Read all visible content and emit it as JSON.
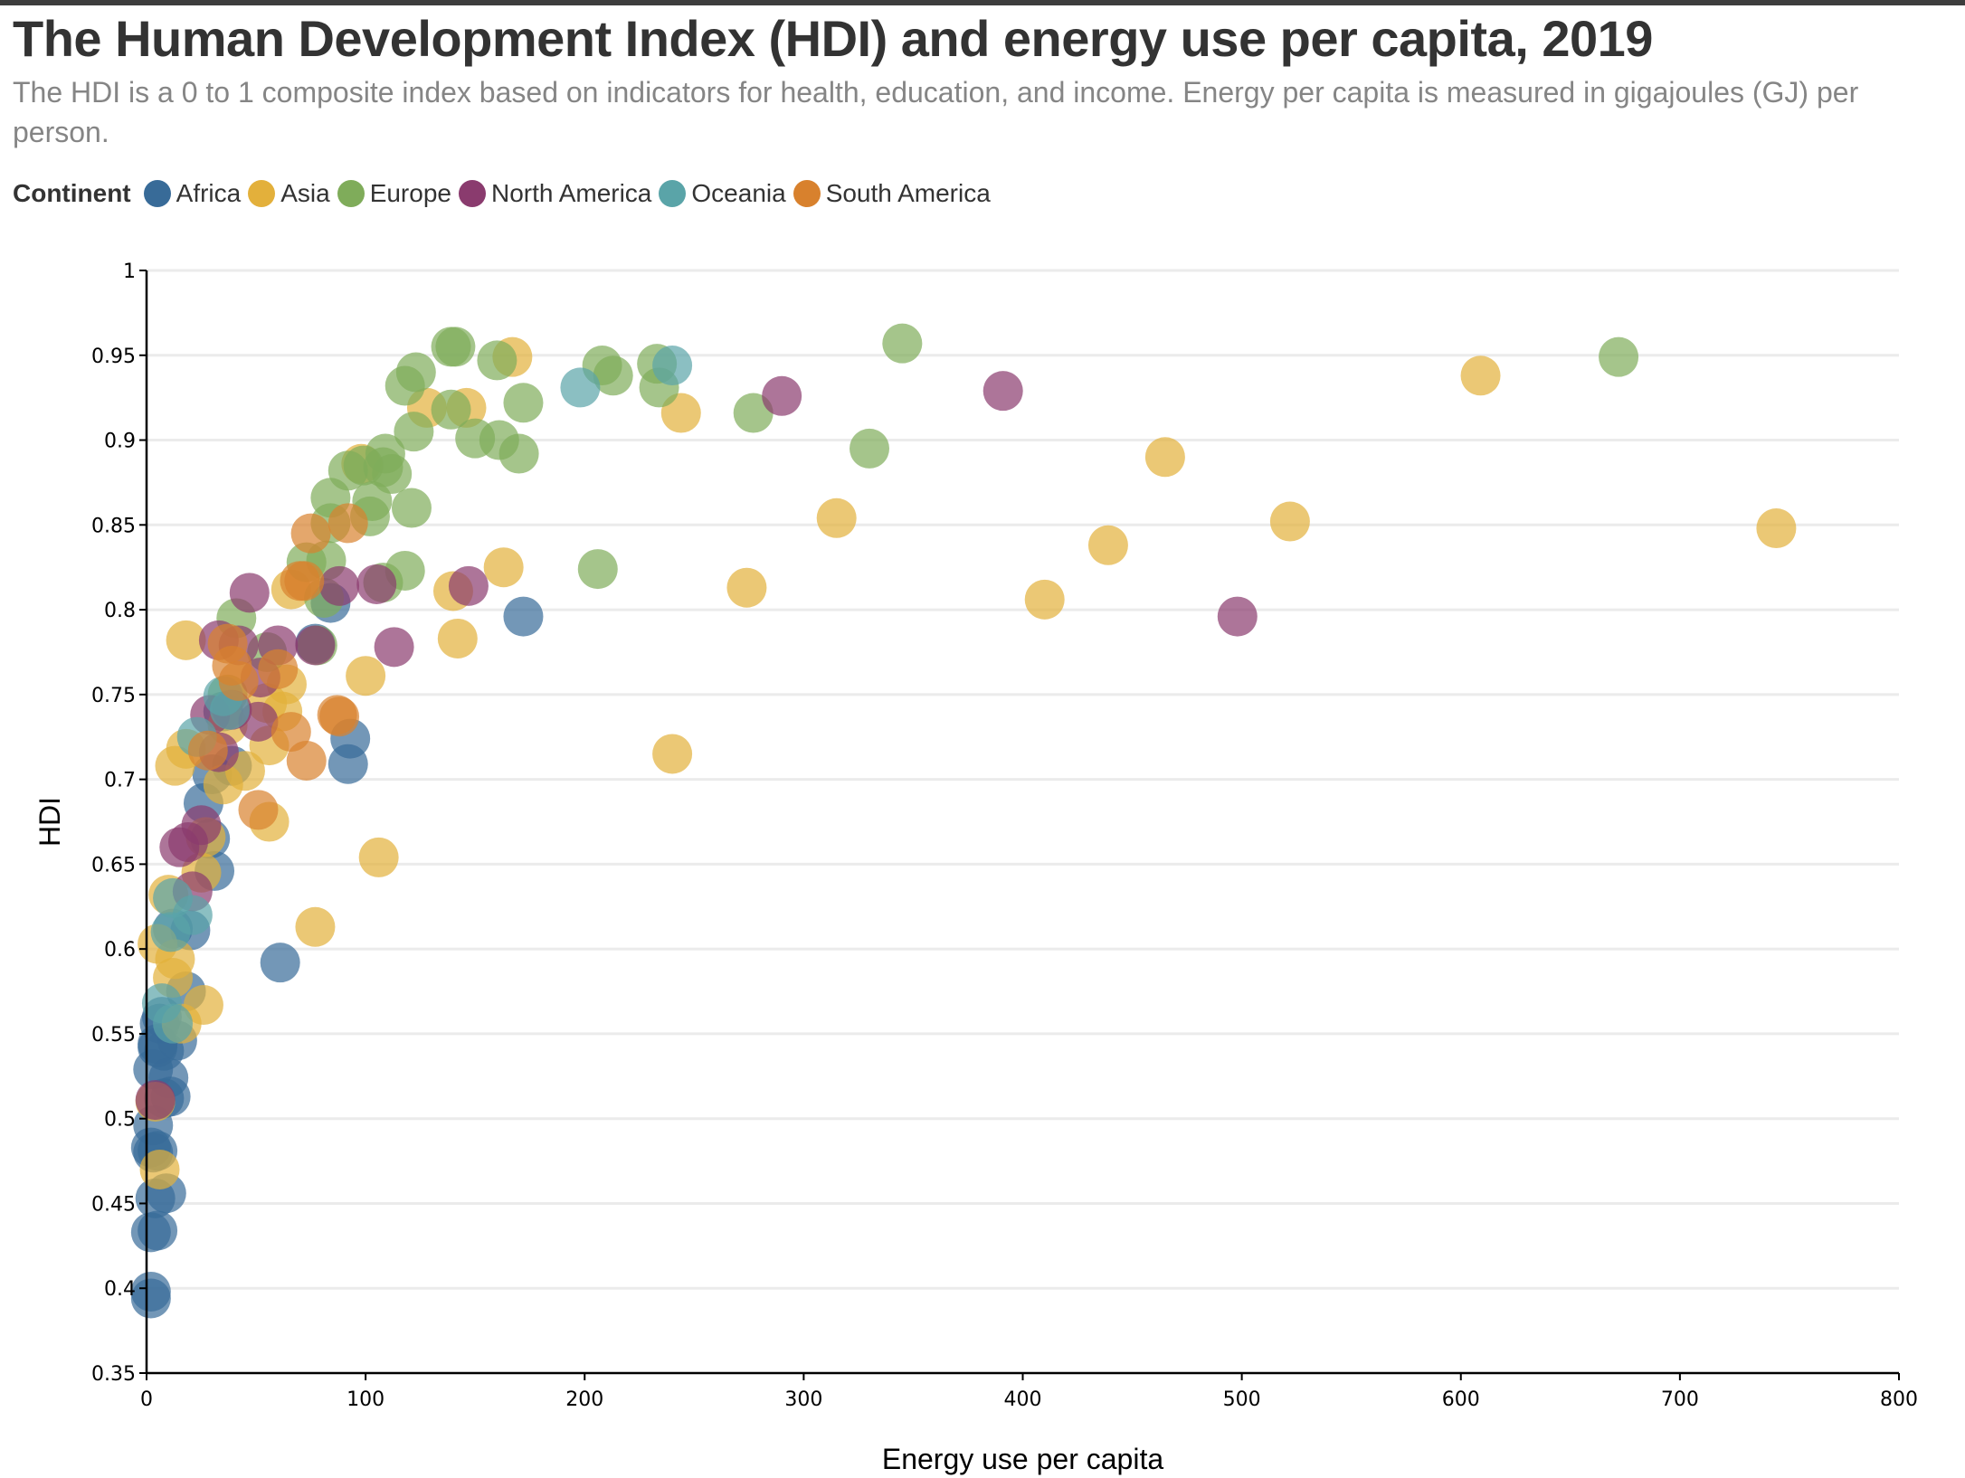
{
  "title": "The Human Development Index (HDI) and energy use per capita, 2019",
  "subtitle": "The HDI is a 0 to 1 composite index based on indicators for health, education, and income. Energy per capita is measured in gigajoules (GJ) per person.",
  "legend": {
    "title": "Continent",
    "items": [
      {
        "label": "Africa",
        "color": "#386b98"
      },
      {
        "label": "Asia",
        "color": "#e3b03b"
      },
      {
        "label": "Europe",
        "color": "#7fac5a"
      },
      {
        "label": "North America",
        "color": "#8a3b6e"
      },
      {
        "label": "Oceania",
        "color": "#5aa4a8"
      },
      {
        "label": "South America",
        "color": "#d8812d"
      }
    ]
  },
  "chart_data": {
    "type": "scatter",
    "title": "The Human Development Index (HDI) and energy use per capita, 2019",
    "xlabel": "Energy use per capita",
    "ylabel": "HDI",
    "xlim": [
      0,
      800
    ],
    "ylim": [
      0.35,
      1
    ],
    "x_ticks": [
      "0",
      "100",
      "200",
      "300",
      "400",
      "500",
      "600",
      "700",
      "800"
    ],
    "y_ticks": [
      "0.35",
      "0.4",
      "0.45",
      "0.5",
      "0.55",
      "0.6",
      "0.65",
      "0.7",
      "0.75",
      "0.8",
      "0.85",
      "0.9",
      "0.95",
      "1"
    ],
    "grid": "horizontal",
    "legend_position": "top-left",
    "series": [
      {
        "name": "Africa",
        "color": "#386b98",
        "points": [
          [
            172,
            0.796
          ],
          [
            84,
            0.804
          ],
          [
            77,
            0.78
          ],
          [
            93,
            0.724
          ],
          [
            92,
            0.709
          ],
          [
            61,
            0.592
          ],
          [
            30,
            0.703
          ],
          [
            26,
            0.686
          ],
          [
            31,
            0.646
          ],
          [
            29,
            0.665
          ],
          [
            39,
            0.708
          ],
          [
            35,
            0.74
          ],
          [
            20,
            0.611
          ],
          [
            12,
            0.612
          ],
          [
            18,
            0.575
          ],
          [
            14,
            0.546
          ],
          [
            6,
            0.556
          ],
          [
            7,
            0.56
          ],
          [
            5,
            0.544
          ],
          [
            8,
            0.54
          ],
          [
            5,
            0.542
          ],
          [
            3,
            0.529
          ],
          [
            10,
            0.524
          ],
          [
            11,
            0.513
          ],
          [
            8,
            0.512
          ],
          [
            3,
            0.496
          ],
          [
            2,
            0.483
          ],
          [
            3,
            0.48
          ],
          [
            5,
            0.481
          ],
          [
            9,
            0.456
          ],
          [
            4,
            0.453
          ],
          [
            2,
            0.433
          ],
          [
            5,
            0.434
          ],
          [
            2,
            0.398
          ],
          [
            2,
            0.394
          ]
        ]
      },
      {
        "name": "Asia",
        "color": "#e3b03b",
        "points": [
          [
            167,
            0.949
          ],
          [
            609,
            0.938
          ],
          [
            128,
            0.919
          ],
          [
            146,
            0.919
          ],
          [
            244,
            0.916
          ],
          [
            98,
            0.886
          ],
          [
            465,
            0.89
          ],
          [
            315,
            0.854
          ],
          [
            522,
            0.852
          ],
          [
            744,
            0.848
          ],
          [
            439,
            0.838
          ],
          [
            163,
            0.825
          ],
          [
            140,
            0.811
          ],
          [
            274,
            0.813
          ],
          [
            410,
            0.806
          ],
          [
            66,
            0.812
          ],
          [
            18,
            0.782
          ],
          [
            142,
            0.783
          ],
          [
            100,
            0.761
          ],
          [
            64,
            0.756
          ],
          [
            55,
            0.745
          ],
          [
            62,
            0.74
          ],
          [
            56,
            0.72
          ],
          [
            240,
            0.715
          ],
          [
            45,
            0.705
          ],
          [
            35,
            0.697
          ],
          [
            13,
            0.708
          ],
          [
            18,
            0.718
          ],
          [
            37,
            0.732
          ],
          [
            56,
            0.675
          ],
          [
            106,
            0.654
          ],
          [
            77,
            0.613
          ],
          [
            27,
            0.666
          ],
          [
            25,
            0.645
          ],
          [
            10,
            0.632
          ],
          [
            5,
            0.603
          ],
          [
            13,
            0.594
          ],
          [
            12,
            0.583
          ],
          [
            26,
            0.567
          ],
          [
            16,
            0.556
          ],
          [
            6,
            0.47
          ],
          [
            4,
            0.51
          ]
        ]
      },
      {
        "name": "Europe",
        "color": "#7fac5a",
        "points": [
          [
            139,
            0.955
          ],
          [
            141,
            0.955
          ],
          [
            345,
            0.957
          ],
          [
            672,
            0.949
          ],
          [
            160,
            0.947
          ],
          [
            208,
            0.944
          ],
          [
            213,
            0.938
          ],
          [
            233,
            0.945
          ],
          [
            234,
            0.931
          ],
          [
            277,
            0.916
          ],
          [
            123,
            0.94
          ],
          [
            118,
            0.932
          ],
          [
            139,
            0.918
          ],
          [
            172,
            0.922
          ],
          [
            122,
            0.905
          ],
          [
            150,
            0.901
          ],
          [
            161,
            0.9
          ],
          [
            170,
            0.892
          ],
          [
            330,
            0.895
          ],
          [
            109,
            0.892
          ],
          [
            108,
            0.884
          ],
          [
            112,
            0.88
          ],
          [
            92,
            0.882
          ],
          [
            99,
            0.885
          ],
          [
            84,
            0.866
          ],
          [
            103,
            0.864
          ],
          [
            121,
            0.86
          ],
          [
            102,
            0.855
          ],
          [
            84,
            0.851
          ],
          [
            206,
            0.824
          ],
          [
            118,
            0.823
          ],
          [
            73,
            0.828
          ],
          [
            82,
            0.829
          ],
          [
            108,
            0.816
          ],
          [
            81,
            0.807
          ],
          [
            41,
            0.795
          ],
          [
            78,
            0.779
          ],
          [
            55,
            0.775
          ],
          [
            37,
            0.75
          ]
        ]
      },
      {
        "name": "North America",
        "color": "#8a3b6e",
        "points": [
          [
            290,
            0.926
          ],
          [
            391,
            0.929
          ],
          [
            147,
            0.814
          ],
          [
            105,
            0.815
          ],
          [
            88,
            0.814
          ],
          [
            47,
            0.81
          ],
          [
            498,
            0.796
          ],
          [
            33,
            0.782
          ],
          [
            42,
            0.779
          ],
          [
            60,
            0.779
          ],
          [
            77,
            0.779
          ],
          [
            113,
            0.778
          ],
          [
            52,
            0.76
          ],
          [
            39,
            0.741
          ],
          [
            29,
            0.738
          ],
          [
            51,
            0.734
          ],
          [
            33,
            0.716
          ],
          [
            25,
            0.673
          ],
          [
            19,
            0.663
          ],
          [
            15,
            0.66
          ],
          [
            21,
            0.634
          ],
          [
            4,
            0.511
          ]
        ]
      },
      {
        "name": "Oceania",
        "color": "#5aa4a8",
        "points": [
          [
            198,
            0.931
          ],
          [
            240,
            0.944
          ],
          [
            35,
            0.749
          ],
          [
            23,
            0.725
          ],
          [
            38,
            0.741
          ],
          [
            12,
            0.63
          ],
          [
            21,
            0.62
          ],
          [
            11,
            0.61
          ],
          [
            7,
            0.568
          ],
          [
            12,
            0.556
          ]
        ]
      },
      {
        "name": "South America",
        "color": "#d8812d",
        "points": [
          [
            75,
            0.845
          ],
          [
            92,
            0.851
          ],
          [
            72,
            0.817
          ],
          [
            70,
            0.817
          ],
          [
            37,
            0.78
          ],
          [
            60,
            0.765
          ],
          [
            39,
            0.767
          ],
          [
            42,
            0.758
          ],
          [
            87,
            0.738
          ],
          [
            88,
            0.737
          ],
          [
            66,
            0.728
          ],
          [
            73,
            0.711
          ],
          [
            28,
            0.717
          ],
          [
            51,
            0.682
          ]
        ]
      }
    ]
  }
}
